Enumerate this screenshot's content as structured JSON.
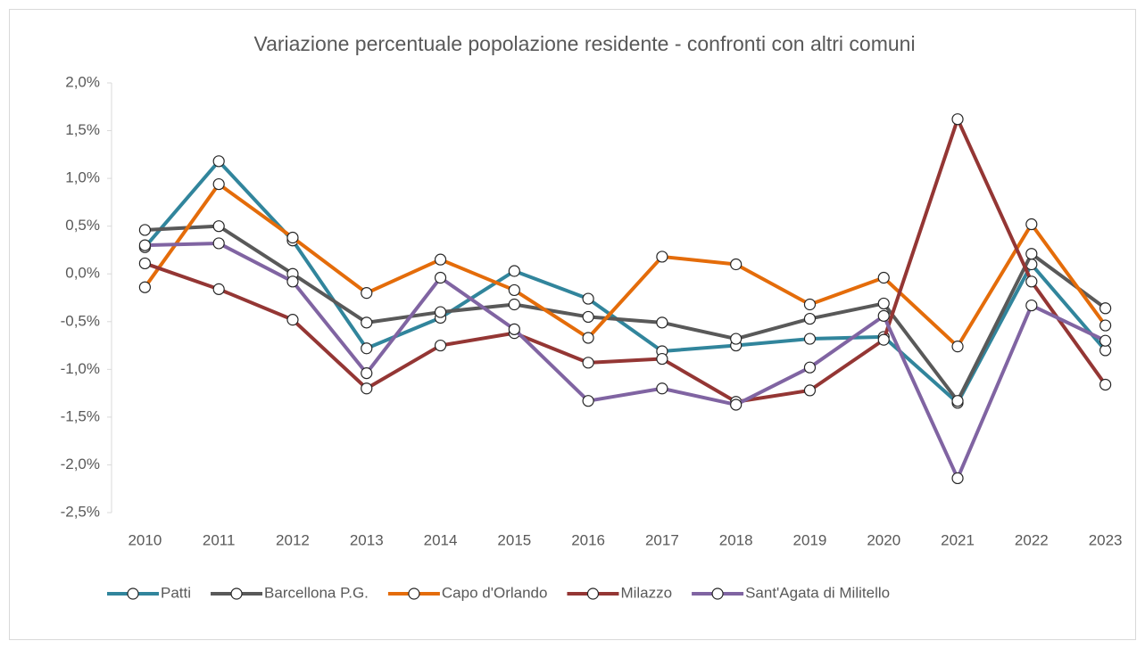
{
  "chart_data": {
    "type": "line",
    "title": "Variazione percentuale popolazione residente - confronti con altri comuni",
    "categories": [
      "2010",
      "2011",
      "2012",
      "2013",
      "2014",
      "2015",
      "2016",
      "2017",
      "2018",
      "2019",
      "2020",
      "2021",
      "2022",
      "2023"
    ],
    "series": [
      {
        "name": "Patti",
        "color": "#31859c",
        "values": [
          0.28,
          1.18,
          0.35,
          -0.78,
          -0.46,
          0.03,
          -0.26,
          -0.81,
          -0.75,
          -0.68,
          -0.66,
          -1.35,
          0.1,
          -0.8
        ]
      },
      {
        "name": "Barcellona P.G.",
        "color": "#595959",
        "values": [
          0.46,
          0.5,
          0.0,
          -0.51,
          -0.4,
          -0.32,
          -0.45,
          -0.51,
          -0.68,
          -0.47,
          -0.31,
          -1.33,
          0.21,
          -0.36
        ]
      },
      {
        "name": "Capo d'Orlando",
        "color": "#e46c0a",
        "values": [
          -0.14,
          0.94,
          0.38,
          -0.2,
          0.15,
          -0.17,
          -0.67,
          0.18,
          0.1,
          -0.32,
          -0.04,
          -0.76,
          0.52,
          -0.54
        ]
      },
      {
        "name": "Milazzo",
        "color": "#943634",
        "values": [
          0.11,
          -0.16,
          -0.48,
          -1.2,
          -0.75,
          -0.62,
          -0.93,
          -0.89,
          -1.34,
          -1.22,
          -0.69,
          1.62,
          -0.08,
          -1.16
        ]
      },
      {
        "name": "Sant'Agata di Militello",
        "color": "#8064a2",
        "values": [
          0.3,
          0.32,
          -0.08,
          -1.04,
          -0.04,
          -0.58,
          -1.33,
          -1.2,
          -1.37,
          -0.98,
          -0.44,
          -2.14,
          -0.33,
          -0.7
        ]
      }
    ],
    "ylim": [
      -2.5,
      2.0
    ],
    "yticks": [
      {
        "value": 2.0,
        "label": "2,0%"
      },
      {
        "value": 1.5,
        "label": "1,5%"
      },
      {
        "value": 1.0,
        "label": "1,0%"
      },
      {
        "value": 0.5,
        "label": "0,5%"
      },
      {
        "value": 0.0,
        "label": "0,0%"
      },
      {
        "value": -0.5,
        "label": "-0,5%"
      },
      {
        "value": -1.0,
        "label": "-1,0%"
      },
      {
        "value": -1.5,
        "label": "-1,5%"
      },
      {
        "value": -2.0,
        "label": "-2,0%"
      },
      {
        "value": -2.5,
        "label": "-2,5%"
      }
    ],
    "grid": false,
    "legend": "bottom"
  }
}
